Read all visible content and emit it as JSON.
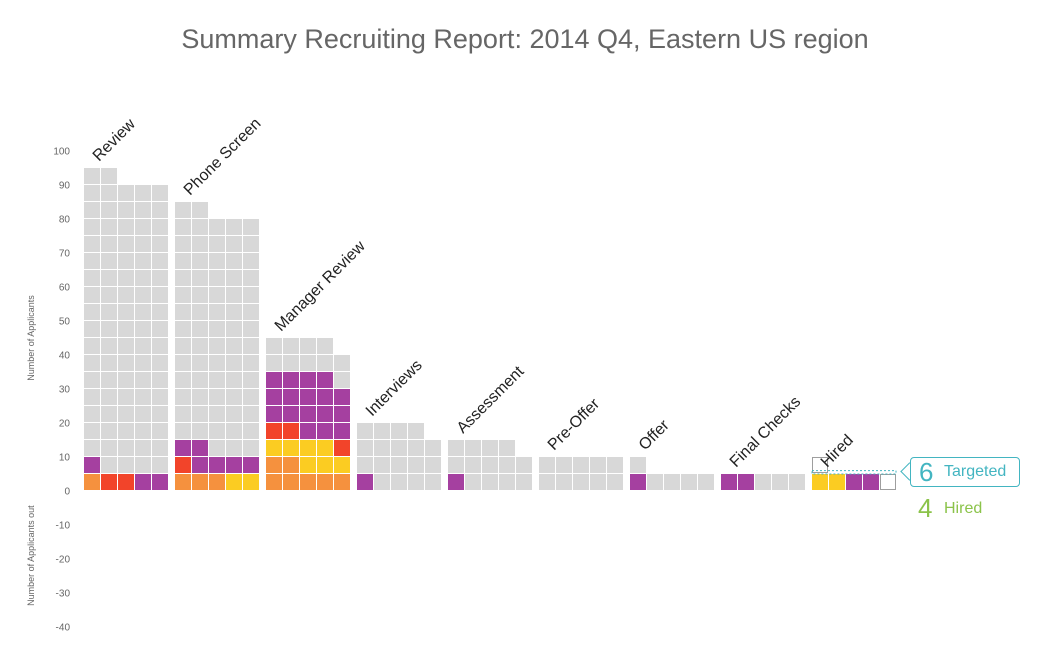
{
  "title": "Summary Recruiting Report: 2014 Q4, Eastern US region",
  "callout": {
    "targeted_value": "6",
    "targeted_label": "Targeted",
    "hired_value": "4",
    "hired_label": "Hired"
  },
  "chart_data": {
    "type": "bar",
    "title": "Summary Recruiting Report: 2014 Q4, Eastern US region",
    "ylabel_top": "Number of Applicants",
    "ylabel_bottom": "Number of Applicants out",
    "ylim": [
      -40,
      100
    ],
    "yticks": [
      100,
      90,
      80,
      70,
      60,
      50,
      40,
      30,
      20,
      10,
      0,
      -10,
      -20,
      -30,
      -40
    ],
    "cell_unit": 5,
    "grid": true,
    "colors": {
      "base": "#d8d8d8",
      "orange": "#f5913e",
      "red": "#f2442a",
      "purple": "#a540a0",
      "yellow": "#fbcc22"
    },
    "categories": [
      "Review",
      "Phone Screen",
      "Manager Review",
      "Interviews",
      "Assessment",
      "Pre-Offer",
      "Offer",
      "Final Checks",
      "Hired"
    ],
    "stages": [
      {
        "name": "Review",
        "column_totals": [
          95,
          95,
          90,
          90,
          90
        ],
        "colored_cells": [
          [
            "orange",
            "purple"
          ],
          [
            "red"
          ],
          [
            "red"
          ],
          [
            "purple"
          ],
          [
            "purple"
          ]
        ]
      },
      {
        "name": "Phone Screen",
        "column_totals": [
          85,
          85,
          80,
          80,
          80
        ],
        "colored_cells": [
          [
            "orange",
            "red",
            "purple"
          ],
          [
            "orange",
            "purple",
            "purple"
          ],
          [
            "orange",
            "purple"
          ],
          [
            "yellow",
            "purple"
          ],
          [
            "yellow",
            "purple"
          ]
        ]
      },
      {
        "name": "Manager Review",
        "column_totals": [
          45,
          45,
          45,
          45,
          40
        ],
        "colored_cells": [
          [
            "orange",
            "orange",
            "yellow",
            "red",
            "purple",
            "purple",
            "purple"
          ],
          [
            "orange",
            "orange",
            "yellow",
            "red",
            "purple",
            "purple",
            "purple"
          ],
          [
            "orange",
            "yellow",
            "yellow",
            "purple",
            "purple",
            "purple",
            "purple"
          ],
          [
            "orange",
            "yellow",
            "yellow",
            "purple",
            "purple",
            "purple",
            "purple"
          ],
          [
            "orange",
            "yellow",
            "red",
            "purple",
            "purple",
            "purple"
          ]
        ]
      },
      {
        "name": "Interviews",
        "column_totals": [
          20,
          20,
          20,
          20,
          15
        ],
        "colored_cells": [
          [
            "purple"
          ],
          [],
          [],
          [],
          []
        ]
      },
      {
        "name": "Assessment",
        "column_totals": [
          15,
          15,
          15,
          15,
          10
        ],
        "colored_cells": [
          [
            "purple"
          ],
          [],
          [],
          [],
          []
        ]
      },
      {
        "name": "Pre-Offer",
        "column_totals": [
          10,
          10,
          10,
          10,
          10
        ],
        "colored_cells": [
          [],
          [],
          [],
          [],
          []
        ]
      },
      {
        "name": "Offer",
        "column_totals": [
          10,
          5,
          5,
          5,
          5
        ],
        "colored_cells": [
          [
            "purple"
          ],
          [],
          [],
          [],
          []
        ]
      },
      {
        "name": "Final Checks",
        "column_totals": [
          5,
          5,
          5,
          5,
          5
        ],
        "colored_cells": [
          [
            "purple"
          ],
          [
            "purple"
          ],
          [],
          [],
          []
        ]
      },
      {
        "name": "Hired",
        "column_totals": [
          5,
          5,
          5,
          5,
          5
        ],
        "colored_cells": [
          [
            "yellow"
          ],
          [
            "yellow"
          ],
          [
            "purple"
          ],
          [
            "purple"
          ],
          [
            "empty"
          ]
        ],
        "extra_empty_cells": [
          {
            "column": 0,
            "level": 2
          }
        ],
        "target_line": 6
      }
    ]
  }
}
